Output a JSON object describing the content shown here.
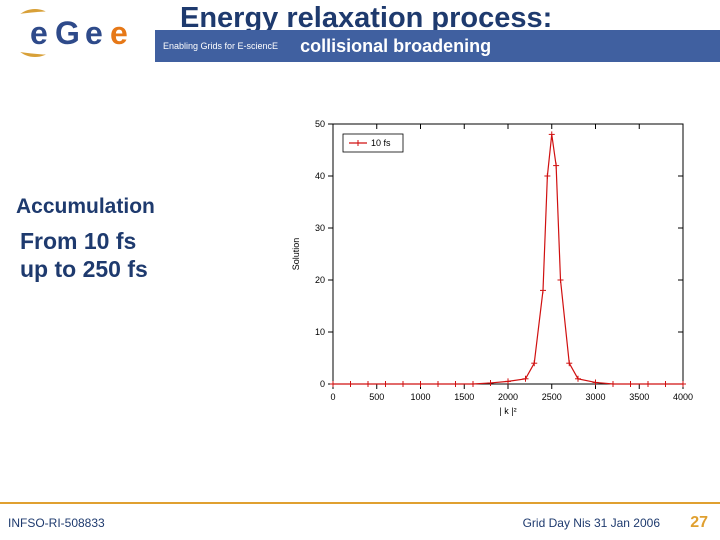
{
  "header": {
    "main_title": "Energy relaxation process:",
    "subtitle": "collisional broadening",
    "tagline": "Enabling Grids for E-sciencE"
  },
  "logo": {
    "text_e1": "e",
    "text_g": "G",
    "text_e2": "e",
    "text_e3": "e",
    "colors": {
      "arc": "#d8a038",
      "letters": "#2e4a8a",
      "orange": "#e67817"
    }
  },
  "content": {
    "accum_label": "Accumulation",
    "range_line1": "From 10 fs",
    "range_line2": "up to 250 fs"
  },
  "footer": {
    "infso": "INFSO-RI-508833",
    "gridday": "Grid Day Nis 31 Jan 2006",
    "page": "27"
  },
  "chart": {
    "type": "line",
    "legend_label": "10 fs",
    "xlabel": "| k |²",
    "ylabel": "Solution",
    "xlim": [
      0,
      4000
    ],
    "xtick_step": 500,
    "ylim": [
      0,
      50
    ],
    "ytick_step": 10,
    "tick_fontsize": 9,
    "label_fontsize": 9,
    "axis_color": "#000000",
    "grid_color": "#000000",
    "line_color": "#d01010",
    "marker": "plus",
    "marker_color": "#d01010",
    "background": "#ffffff",
    "x": [
      0,
      200,
      400,
      600,
      800,
      1000,
      1200,
      1400,
      1600,
      1800,
      2000,
      2200,
      2300,
      2400,
      2450,
      2500,
      2550,
      2600,
      2700,
      2800,
      3000,
      3200,
      3400,
      3600,
      3800,
      4000
    ],
    "y": [
      0,
      0,
      0,
      0,
      0,
      0,
      0,
      0,
      0,
      0.2,
      0.5,
      1,
      4,
      18,
      40,
      48,
      42,
      20,
      4,
      1,
      0.3,
      0,
      0,
      0,
      0,
      0
    ]
  }
}
